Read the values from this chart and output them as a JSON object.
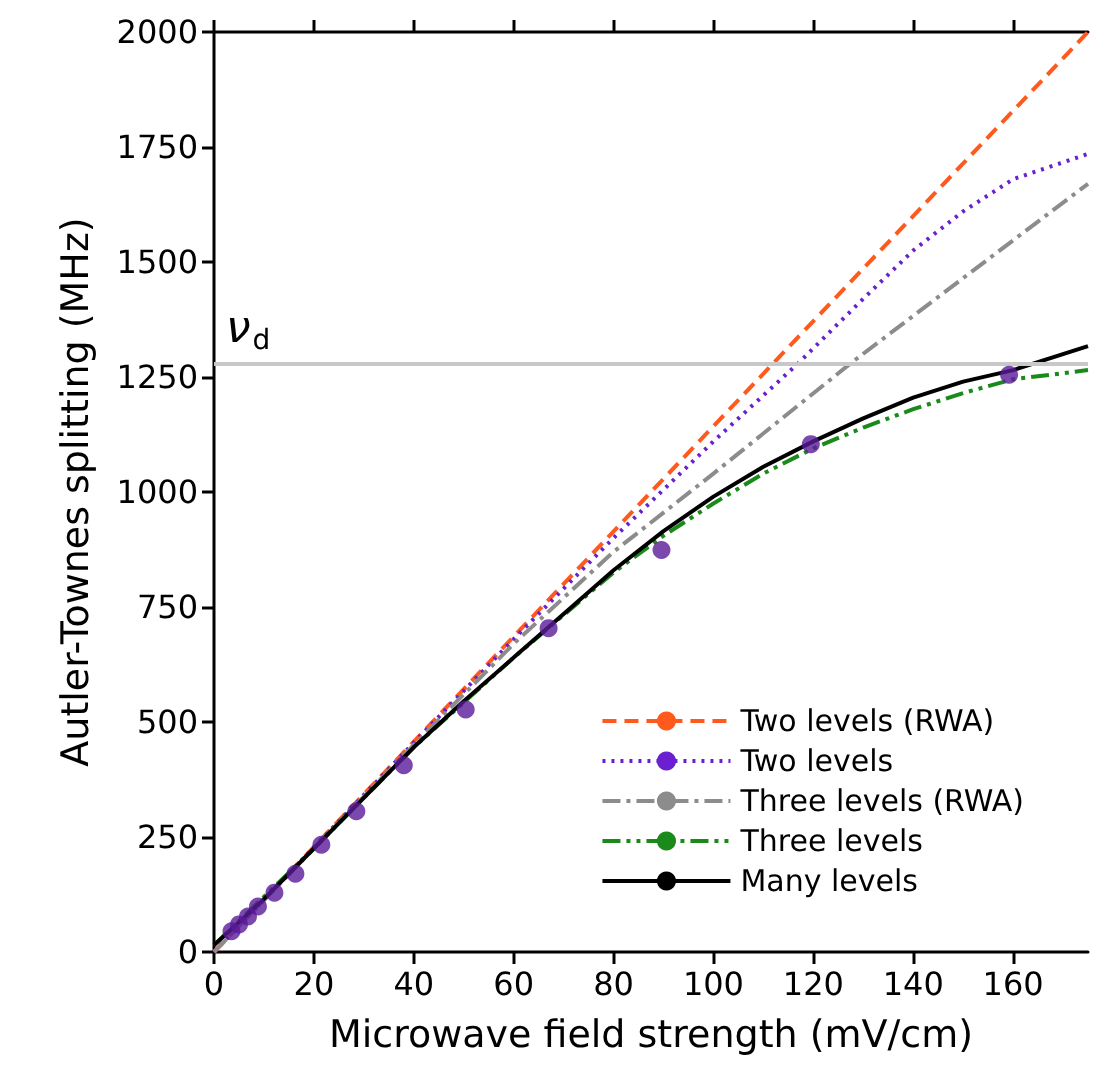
{
  "chart_data": {
    "type": "line",
    "xlabel": "Microwave field strength (mV/cm)",
    "ylabel": "Autler-Townes splitting (MHz)",
    "xlim": [
      0,
      175
    ],
    "xticks": [
      0,
      20,
      40,
      60,
      80,
      100,
      120,
      140,
      160
    ],
    "ylim": [
      0,
      2000
    ],
    "yticks": [
      0,
      250,
      500,
      750,
      1000,
      1250,
      1500,
      1750,
      2000
    ],
    "grid": false,
    "legend": "bottom right",
    "marker": "none",
    "ref_lines": [
      {
        "axis": "y",
        "value": 1280,
        "label": "ν$_{d}$",
        "color": "#c8c8c8"
      }
    ],
    "series": [
      {
        "name": "Two levels (RWA)",
        "color": "#ff5a1e",
        "line_style": "dashed",
        "x": [
          0,
          175
        ],
        "values": [
          0,
          2000
        ]
      },
      {
        "name": "Two levels",
        "color": "#6a1fd0",
        "line_style": "dotted",
        "x": [
          0,
          40,
          60,
          80,
          100,
          117,
          130,
          140,
          150,
          160,
          175
        ],
        "values": [
          0,
          455,
          680,
          900,
          1110,
          1280,
          1420,
          1525,
          1610,
          1680,
          1735
        ]
      },
      {
        "name": "Three levels (RWA)",
        "color": "#8c8c8c",
        "line_style": "dashdot",
        "x": [
          0,
          40,
          60,
          80,
          100,
          127.5,
          150,
          175
        ],
        "values": [
          0,
          450,
          670,
          870,
          1040,
          1280,
          1465,
          1670
        ]
      },
      {
        "name": "Three levels",
        "color": "#1a8a1a",
        "line_style": "dashdotdot",
        "x": [
          0,
          20,
          40,
          60,
          80,
          90,
          100,
          110,
          120,
          130,
          140,
          150,
          160,
          175
        ],
        "values": [
          15,
          225,
          445,
          640,
          825,
          905,
          975,
          1040,
          1095,
          1140,
          1180,
          1215,
          1245,
          1265
        ]
      },
      {
        "name": "Many levels",
        "color": "#000000",
        "line_style": "solid",
        "x": [
          0,
          10,
          20,
          30,
          40,
          50,
          60,
          70,
          80,
          90,
          100,
          110,
          120,
          130,
          140,
          150,
          160,
          175
        ],
        "values": [
          15,
          115,
          225,
          335,
          445,
          545,
          640,
          735,
          830,
          915,
          990,
          1055,
          1110,
          1160,
          1205,
          1240,
          1265,
          1317
        ]
      },
      {
        "type": "scatter",
        "color": "#5a1a9a",
        "marker": "circle",
        "x": [
          3.5,
          5,
          6.8,
          8.8,
          12.1,
          16.3,
          21.5,
          28.5,
          38,
          50.4,
          67,
          89.6,
          119.5,
          159.2
        ],
        "values": [
          45,
          60,
          77,
          99,
          129,
          170,
          233,
          306,
          406,
          527,
          704,
          874,
          1104,
          1255
        ]
      }
    ]
  }
}
